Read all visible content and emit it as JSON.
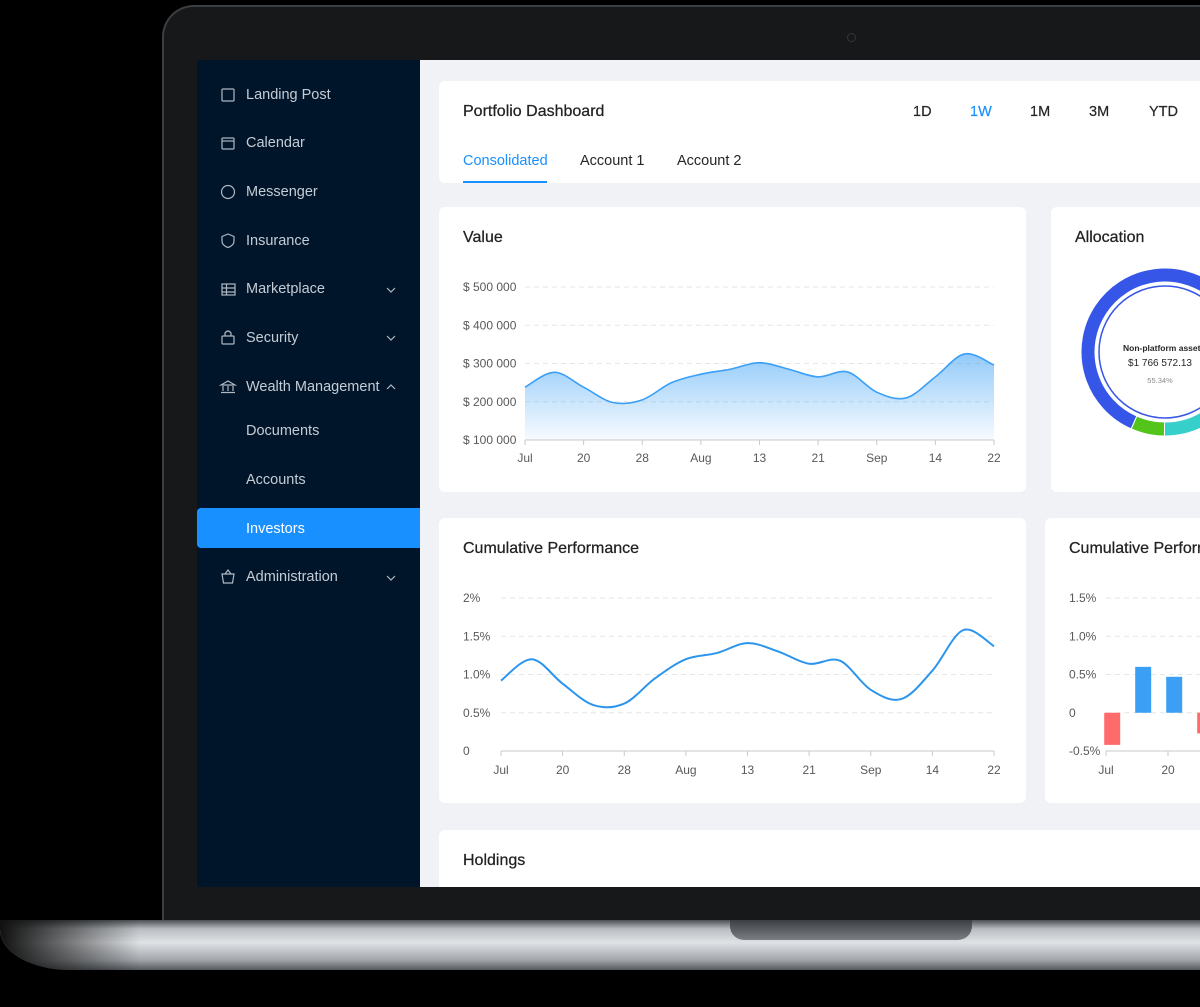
{
  "sidebar": {
    "items": [
      "Landing Post",
      "Calendar",
      "Messenger",
      "Insurance",
      "Marketplace",
      "Security",
      "Wealth Management",
      "Documents",
      "Accounts",
      "Investors",
      "Administration"
    ]
  },
  "header": {
    "title": "Portfolio Dashboard",
    "ranges": [
      "1D",
      "1W",
      "1M",
      "3M",
      "YTD"
    ],
    "tabs": [
      "Consolidated",
      "Account 1",
      "Account 2"
    ]
  },
  "chart_data": [
    {
      "type": "area",
      "title": "Value",
      "x": [
        0,
        0.5,
        1,
        1.5,
        2,
        2.5,
        3,
        3.5,
        4,
        4.5,
        5,
        5.5,
        6,
        6.5,
        7,
        7.5,
        8
      ],
      "values": [
        238000,
        277000,
        238000,
        198000,
        205000,
        250000,
        272000,
        285000,
        302000,
        285000,
        265000,
        278000,
        225000,
        210000,
        265000,
        325000,
        296000
      ],
      "color": "#3a9ff5",
      "xlim": [
        0,
        8
      ],
      "xticks": [
        {
          "value": 0,
          "label": "Jul"
        },
        {
          "value": 1,
          "label": "20"
        },
        {
          "value": 2,
          "label": "28"
        },
        {
          "value": 3,
          "label": "Aug"
        },
        {
          "value": 4,
          "label": "13"
        },
        {
          "value": 5,
          "label": "21"
        },
        {
          "value": 6,
          "label": "Sep"
        },
        {
          "value": 7,
          "label": "14"
        },
        {
          "value": 8,
          "label": "22"
        }
      ],
      "ylim": [
        100000,
        500000
      ],
      "yticks": [
        {
          "value": 100000,
          "label": "$ 100 000"
        },
        {
          "value": 200000,
          "label": "$ 200 000"
        },
        {
          "value": 300000,
          "label": "$ 300 000"
        },
        {
          "value": 400000,
          "label": "$ 400 000"
        },
        {
          "value": 500000,
          "label": "$ 500 000"
        }
      ],
      "grid": true
    },
    {
      "type": "donut",
      "title": "Allocation",
      "values": [
        38.16,
        6.5,
        55.34
      ],
      "colors": [
        "#36cfc9",
        "#52c41a",
        "#3656e8"
      ],
      "center_label": "Non-platform assets",
      "center_amount": "$1 766 572.13",
      "center_share": "55.34%"
    },
    {
      "type": "line",
      "title": "Cumulative Performance",
      "x": [
        0,
        0.5,
        1,
        1.5,
        2,
        2.5,
        3,
        3.5,
        4,
        4.5,
        5,
        5.5,
        6,
        6.5,
        7,
        7.5,
        8
      ],
      "values": [
        0.92,
        1.2,
        0.88,
        0.6,
        0.62,
        0.95,
        1.2,
        1.28,
        1.41,
        1.3,
        1.14,
        1.18,
        0.8,
        0.68,
        1.05,
        1.58,
        1.37
      ],
      "color": "#2b95ee",
      "xlim": [
        0,
        8
      ],
      "xticks": [
        {
          "value": 0,
          "label": "Jul"
        },
        {
          "value": 1,
          "label": "20"
        },
        {
          "value": 2,
          "label": "28"
        },
        {
          "value": 3,
          "label": "Aug"
        },
        {
          "value": 4,
          "label": "13"
        },
        {
          "value": 5,
          "label": "21"
        },
        {
          "value": 6,
          "label": "Sep"
        },
        {
          "value": 7,
          "label": "14"
        },
        {
          "value": 8,
          "label": "22"
        }
      ],
      "ylim": [
        0,
        2
      ],
      "yticks": [
        0,
        {
          "value": 0.5,
          "label": "0.5%"
        },
        {
          "value": 1,
          "label": "1.0%"
        },
        {
          "value": 1.5,
          "label": "1.5%"
        },
        {
          "value": 2,
          "label": "2%"
        }
      ],
      "grid": true
    },
    {
      "type": "bar",
      "title": "Cumulative Performance",
      "x": [
        0.1,
        0.6,
        1.1,
        1.6
      ],
      "values": [
        -0.42,
        0.6,
        0.47,
        -0.27
      ],
      "color": "#3a9ff5",
      "negative_color": "#ff6b6b",
      "xlim": [
        0,
        8
      ],
      "xticks": [
        {
          "value": 0,
          "label": "Jul"
        },
        {
          "value": 1,
          "label": "20"
        }
      ],
      "ylim": [
        -0.5,
        1.5
      ],
      "yticks": [
        {
          "value": -0.5,
          "label": "-0.5%"
        },
        0,
        {
          "value": 0.5,
          "label": "0.5%"
        },
        {
          "value": 1,
          "label": "1.0%"
        },
        {
          "value": 1.5,
          "label": "1.5%"
        }
      ],
      "grid": true
    }
  ],
  "holdings": {
    "title": "Holdings"
  }
}
